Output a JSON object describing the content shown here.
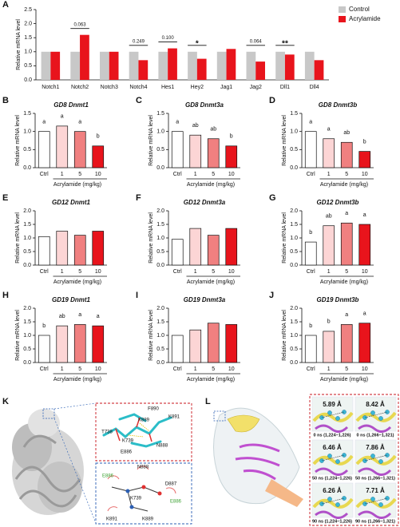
{
  "chart_data": [
    {
      "type": "bar",
      "panel": "A",
      "ylabel": "Relative mRNA level",
      "categories": [
        "Notch1",
        "Notch2",
        "Notch3",
        "Notch4",
        "Hes1",
        "Hey2",
        "Jag1",
        "Jag2",
        "Dll1",
        "Dll4"
      ],
      "series": [
        {
          "name": "Control",
          "color": "#c8c8c8",
          "values": [
            1.0,
            1.0,
            1.0,
            1.0,
            1.0,
            1.0,
            1.0,
            1.0,
            1.0,
            1.0
          ]
        },
        {
          "name": "Acrylamide",
          "color": "#e8141c",
          "values": [
            1.0,
            1.6,
            1.0,
            0.7,
            1.12,
            0.75,
            1.1,
            0.65,
            0.9,
            0.7
          ]
        }
      ],
      "annotations": [
        null,
        "0.063",
        null,
        "0.249",
        "0.100",
        "*",
        null,
        "0.064",
        "**",
        null
      ],
      "ylim": [
        0,
        2.5
      ],
      "yticks": [
        {
          "value": 0,
          "label": "0.0"
        },
        {
          "value": 0.5,
          "label": "0.5"
        },
        {
          "value": 1,
          "label": "1.0"
        },
        {
          "value": 1.5,
          "label": "1.5"
        },
        {
          "value": 2,
          "label": "2.0"
        },
        {
          "value": 2.5,
          "label": "2.5"
        }
      ],
      "legend": "upper right"
    },
    {
      "type": "bar",
      "panel": "B",
      "title": "GD8 Dnmt1",
      "ylabel": "Relative mRNA level",
      "xlabel": "Acrylamide (mg/kg)",
      "categories": [
        "Ctrl",
        "1",
        "5",
        "10"
      ],
      "values": [
        1.0,
        1.15,
        1.0,
        0.6
      ],
      "letters": [
        "a",
        "a",
        "a",
        "b"
      ],
      "colors": [
        "#ffffff",
        "#fcd5d5",
        "#f08080",
        "#e8141c"
      ],
      "ylim": [
        0,
        1.5
      ],
      "yticks": [
        {
          "value": 0,
          "label": "0.0"
        },
        {
          "value": 0.5,
          "label": "0.5"
        },
        {
          "value": 1,
          "label": "1.0"
        },
        {
          "value": 1.5,
          "label": "1.5"
        }
      ]
    },
    {
      "type": "bar",
      "panel": "C",
      "title": "GD8 Dnmt3a",
      "ylabel": "Relative mRNA level",
      "xlabel": "Acrylamide (mg/kg)",
      "categories": [
        "Ctrl",
        "1",
        "5",
        "10"
      ],
      "values": [
        1.0,
        0.9,
        0.8,
        0.6
      ],
      "letters": [
        "a",
        "ab",
        "ab",
        "b"
      ],
      "colors": [
        "#ffffff",
        "#fcd5d5",
        "#f08080",
        "#e8141c"
      ],
      "ylim": [
        0,
        1.5
      ],
      "yticks": [
        {
          "value": 0,
          "label": "0.0"
        },
        {
          "value": 0.5,
          "label": "0.5"
        },
        {
          "value": 1,
          "label": "1.0"
        },
        {
          "value": 1.5,
          "label": "1.5"
        }
      ]
    },
    {
      "type": "bar",
      "panel": "D",
      "title": "GD8 Dnmt3b",
      "ylabel": "Relative mRNA level",
      "xlabel": "Acrylamide (mg/kg)",
      "categories": [
        "Ctrl",
        "1",
        "5",
        "10"
      ],
      "values": [
        1.0,
        0.8,
        0.7,
        0.45
      ],
      "letters": [
        "a",
        "a",
        "ab",
        "b"
      ],
      "colors": [
        "#ffffff",
        "#fcd5d5",
        "#f08080",
        "#e8141c"
      ],
      "ylim": [
        0,
        1.5
      ],
      "yticks": [
        {
          "value": 0,
          "label": "0.0"
        },
        {
          "value": 0.5,
          "label": "0.5"
        },
        {
          "value": 1,
          "label": "1.0"
        },
        {
          "value": 1.5,
          "label": "1.5"
        }
      ]
    },
    {
      "type": "bar",
      "panel": "E",
      "title": "GD12 Dnmt1",
      "ylabel": "Relative mRNA level",
      "xlabel": "Acrylamide (mg/kg)",
      "categories": [
        "Ctrl",
        "1",
        "5",
        "10"
      ],
      "values": [
        1.05,
        1.25,
        1.1,
        1.25
      ],
      "colors": [
        "#ffffff",
        "#fcd5d5",
        "#f08080",
        "#e8141c"
      ],
      "ylim": [
        0,
        2
      ],
      "yticks": [
        {
          "value": 0,
          "label": "0.0"
        },
        {
          "value": 0.5,
          "label": "0.5"
        },
        {
          "value": 1,
          "label": "1.0"
        },
        {
          "value": 1.5,
          "label": "1.5"
        },
        {
          "value": 2,
          "label": "2.0"
        }
      ]
    },
    {
      "type": "bar",
      "panel": "F",
      "title": "GD12 Dnmt3a",
      "ylabel": "Relative mRNA level",
      "xlabel": "Acrylamide (mg/kg)",
      "categories": [
        "Ctrl",
        "1",
        "5",
        "10"
      ],
      "values": [
        0.95,
        1.35,
        1.1,
        1.35
      ],
      "colors": [
        "#ffffff",
        "#fcd5d5",
        "#f08080",
        "#e8141c"
      ],
      "ylim": [
        0,
        2
      ],
      "yticks": [
        {
          "value": 0,
          "label": "0.0"
        },
        {
          "value": 0.5,
          "label": "0.5"
        },
        {
          "value": 1,
          "label": "1.0"
        },
        {
          "value": 1.5,
          "label": "1.5"
        },
        {
          "value": 2,
          "label": "2.0"
        }
      ]
    },
    {
      "type": "bar",
      "panel": "G",
      "title": "GD12 Dnmt3b",
      "ylabel": "Relative mRNA level",
      "xlabel": "Acrylamide (mg/kg)",
      "categories": [
        "Ctrl",
        "1",
        "5",
        "10"
      ],
      "values": [
        0.85,
        1.45,
        1.55,
        1.5
      ],
      "letters": [
        "b",
        "ab",
        "a",
        "a"
      ],
      "colors": [
        "#ffffff",
        "#fcd5d5",
        "#f08080",
        "#e8141c"
      ],
      "ylim": [
        0,
        2
      ],
      "yticks": [
        {
          "value": 0,
          "label": "0.0"
        },
        {
          "value": 0.5,
          "label": "0.5"
        },
        {
          "value": 1,
          "label": "1.0"
        },
        {
          "value": 1.5,
          "label": "1.5"
        },
        {
          "value": 2,
          "label": "2.0"
        }
      ]
    },
    {
      "type": "bar",
      "panel": "H",
      "title": "GD19 Dnmt1",
      "ylabel": "Relative mRNA level",
      "xlabel": "Acrylamide (mg/kg)",
      "categories": [
        "Ctrl",
        "1",
        "5",
        "10"
      ],
      "values": [
        1.0,
        1.35,
        1.4,
        1.35
      ],
      "letters": [
        "b",
        "ab",
        "a",
        "a"
      ],
      "colors": [
        "#ffffff",
        "#fcd5d5",
        "#f08080",
        "#e8141c"
      ],
      "ylim": [
        0,
        2
      ],
      "yticks": [
        {
          "value": 0,
          "label": "0.0"
        },
        {
          "value": 0.5,
          "label": "0.5"
        },
        {
          "value": 1,
          "label": "1.0"
        },
        {
          "value": 1.5,
          "label": "1.5"
        },
        {
          "value": 2,
          "label": "2.0"
        }
      ]
    },
    {
      "type": "bar",
      "panel": "I",
      "title": "GD19 Dnmt3a",
      "ylabel": "Relative mRNA level",
      "xlabel": "Acrylamide (mg/kg)",
      "categories": [
        "Ctrl",
        "1",
        "5",
        "10"
      ],
      "values": [
        1.0,
        1.2,
        1.45,
        1.4
      ],
      "colors": [
        "#ffffff",
        "#fcd5d5",
        "#f08080",
        "#e8141c"
      ],
      "ylim": [
        0,
        2
      ],
      "yticks": [
        {
          "value": 0,
          "label": "0.0"
        },
        {
          "value": 0.5,
          "label": "0.5"
        },
        {
          "value": 1,
          "label": "1.0"
        },
        {
          "value": 1.5,
          "label": "1.5"
        },
        {
          "value": 2,
          "label": "2.0"
        }
      ]
    },
    {
      "type": "bar",
      "panel": "J",
      "title": "GD19 Dnmt3b",
      "ylabel": "Relative mRNA level",
      "xlabel": "Acrylamide (mg/kg)",
      "categories": [
        "Ctrl",
        "1",
        "5",
        "10"
      ],
      "values": [
        1.0,
        1.15,
        1.4,
        1.45
      ],
      "letters": [
        "b",
        "b",
        "a",
        "a"
      ],
      "colors": [
        "#ffffff",
        "#fcd5d5",
        "#f08080",
        "#e8141c"
      ],
      "ylim": [
        0,
        2
      ],
      "yticks": [
        {
          "value": 0,
          "label": "0.0"
        },
        {
          "value": 0.5,
          "label": "0.5"
        },
        {
          "value": 1,
          "label": "1.0"
        },
        {
          "value": 1.5,
          "label": "1.5"
        },
        {
          "value": 2,
          "label": "2.0"
        }
      ]
    }
  ],
  "structures": {
    "K": {
      "panel": "K",
      "top_labels": [
        "F890",
        "K891",
        "K889",
        "T738",
        "K739",
        "E886",
        "N888"
      ],
      "bottom_labels": [
        "E886",
        "N888",
        "D887",
        "K739",
        "K891",
        "K889",
        "E886"
      ]
    },
    "L": {
      "panel": "L",
      "distances": [
        "5.89 Å",
        "8.42 Å",
        "6.46 Å",
        "7.86 Å",
        "6.26 Å",
        "7.71 Å"
      ],
      "captions": [
        "0 ns (1,224~1,226)",
        "0 ns (1,266~1,321)",
        "50 ns (1,224~1,226)",
        "50 ns (1,266~1,321)",
        "90 ns (1,224~1,226)",
        "90 ns (1,266~1,321)"
      ]
    }
  }
}
